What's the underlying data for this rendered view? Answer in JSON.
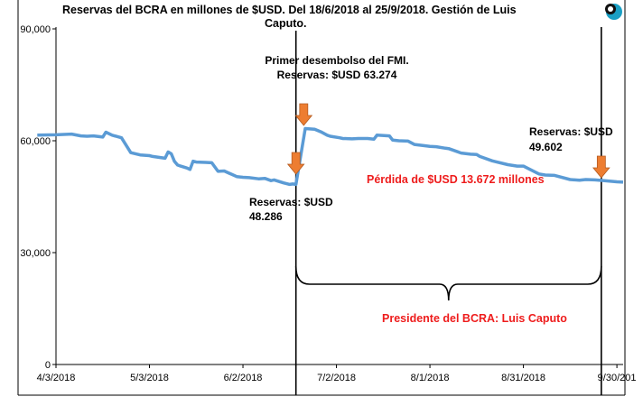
{
  "chart_data": {
    "type": "line",
    "title_line1": "Reservas del BCRA en millones de $USD. Del 18/6/2018 al 25/9/2018. Gestión de Luis",
    "title_line2": "Caputo.",
    "y_ticks": [
      "0",
      "30,000",
      "60,000",
      "90,000"
    ],
    "y_tick_values": [
      0,
      30000,
      60000,
      90000
    ],
    "ylim": [
      0,
      90000
    ],
    "x_ticks": [
      "4/3/2018",
      "5/3/2018",
      "6/2/2018",
      "7/2/2018",
      "8/1/2018",
      "8/31/2018",
      "9/30/201"
    ],
    "x_tick_days": [
      0,
      30,
      60,
      90,
      120,
      150,
      180
    ],
    "x_domain_days": [
      0,
      182
    ],
    "grid": false,
    "series_color": "#5b9bd5",
    "arrow_color": "#ed7d31",
    "series": [
      {
        "x_days": [
          -6,
          0,
          5,
          8,
          10,
          12,
          15,
          16,
          18,
          21,
          24,
          27,
          30,
          31,
          35,
          36,
          37,
          38,
          39,
          40,
          42,
          43,
          44,
          45,
          48,
          50,
          52,
          54,
          55,
          58,
          60,
          62,
          65,
          67,
          69,
          70,
          73,
          75,
          76,
          77,
          80,
          83,
          85,
          87,
          88,
          91,
          92,
          95,
          97,
          100,
          102,
          103,
          107,
          108,
          110,
          113,
          115,
          118,
          120,
          122,
          125,
          126,
          130,
          133,
          135,
          136,
          140,
          145,
          148,
          150,
          151,
          155,
          157,
          160,
          165,
          168,
          170,
          173,
          176,
          180,
          182
        ],
        "y": [
          61500,
          61600,
          61800,
          61300,
          61200,
          61300,
          61000,
          62300,
          61500,
          60800,
          56800,
          56200,
          56000,
          55800,
          55300,
          57000,
          56500,
          54500,
          53500,
          53200,
          52700,
          52300,
          54500,
          54300,
          54200,
          54100,
          51800,
          51900,
          51500,
          50400,
          50200,
          50100,
          49800,
          49900,
          49300,
          49500,
          48700,
          48300,
          48400,
          48286,
          63274,
          63100,
          62400,
          61500,
          61200,
          60800,
          60600,
          60500,
          60600,
          60600,
          60400,
          61500,
          61300,
          60200,
          60000,
          59900,
          59000,
          58700,
          58500,
          58400,
          58000,
          57900,
          56700,
          56400,
          56300,
          55800,
          54600,
          53600,
          53200,
          53200,
          52800,
          51100,
          50800,
          50700,
          49600,
          49400,
          49602,
          49500,
          49300,
          49000,
          48900
        ]
      }
    ],
    "annotations": {
      "first_disbursement_line1": "Primer desembolso del FMI.",
      "first_disbursement_line2": "Reservas: $USD 63.274",
      "start_line1": "Reservas: $USD",
      "start_line2": "48.286",
      "end_line1": "Reservas: $USD",
      "end_line2": "49.602",
      "loss": "Pérdida de $USD 13.672 millones",
      "president": "Presidente del BCRA: Luis Caputo"
    },
    "vertical_markers_days": [
      77,
      175
    ]
  }
}
